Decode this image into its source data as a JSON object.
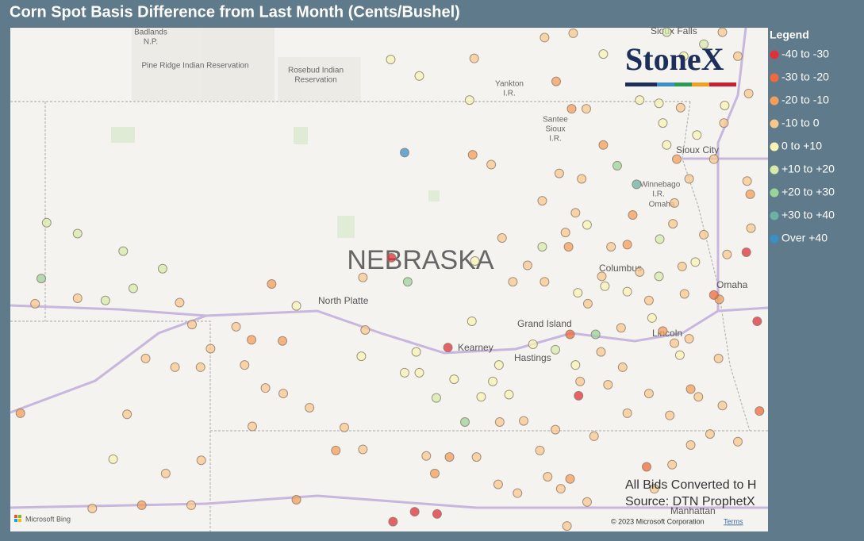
{
  "chart_data": {
    "type": "map",
    "title": "Corn Spot Basis Difference from Last Month (Cents/Bushel)",
    "legend_title": "Legend",
    "series": [
      {
        "name": "-40 to -30",
        "color": "#e0303a"
      },
      {
        "name": "-30 to -20",
        "color": "#f0693a"
      },
      {
        "name": "-20 to -10",
        "color": "#f59e5a"
      },
      {
        "name": "-10 to 0",
        "color": "#f9c78c"
      },
      {
        "name": "0 to +10",
        "color": "#f6f4b4"
      },
      {
        "name": "+10 to +20",
        "color": "#d6ebab"
      },
      {
        "name": "+20 to +30",
        "color": "#9bd39a"
      },
      {
        "name": "+30 to +40",
        "color": "#6bb2a6"
      },
      {
        "name": "Over +40",
        "color": "#3a8fc7"
      }
    ],
    "lon_range": [
      -104.5,
      -94.7
    ],
    "lat_range": [
      43.7,
      39.1
    ],
    "lon": [
      -99.4,
      -99.57,
      -98.84,
      -97.15,
      -94.84,
      -94.98,
      -98.98,
      -99.27,
      -99.55,
      -96.4,
      -96.65,
      -104.1,
      -99.36,
      -96.93,
      -98.62,
      -98.99,
      -104.03,
      -103.63,
      -103.04,
      -102.53,
      -102.91,
      -103.27,
      -100.8,
      -99.58,
      -99.21,
      -98.56,
      -103.17,
      -99.96,
      -98.53,
      -98.49,
      -104.18,
      -103.63,
      -102.31,
      -102.15,
      -101.58,
      -101.12,
      -99.94,
      -99.91,
      -101.38,
      -100.98,
      -101.91,
      -102.75,
      -102.37,
      -102.04,
      -101.47,
      -101.2,
      -100.97,
      -100.63,
      -100.18,
      -101.37,
      -102.99,
      -104.37,
      -102.03,
      -102.49,
      -103.44,
      -102.8,
      -102.16,
      -100.8,
      -100.29,
      -99.94,
      -99.12,
      -98.82,
      -98.47,
      -98.19,
      -97.94,
      -97.38,
      -97.04,
      -97.3,
      -98.5,
      -97.59,
      -97.22,
      -97.44,
      -97.24,
      -97.05,
      -96.83,
      -98.52,
      -98.28,
      -97.4,
      -97.11,
      -97.62,
      -97.19,
      -96.45,
      -96.52,
      -96.73,
      -96.85,
      -96.36,
      -96.11,
      -95.81,
      -95.53,
      -95.23,
      -94.92,
      -94.97,
      -94.93,
      -95.33,
      -95.4,
      -94.81,
      -96.27,
      -97.26,
      -96.06,
      -96.6,
      -95.72,
      -95.34,
      -95.91,
      -96.58,
      -96.86,
      -97.45,
      -97.19,
      -97.74,
      -98.18,
      -98.26,
      -98.05,
      -98.41,
      -99.4,
      -99.21,
      -98.76,
      -99.25,
      -97.13,
      -96.77,
      -96.52,
      -95.97,
      -95.6,
      -95.29,
      -95.09,
      -95.7,
      -96.95,
      -97.45,
      -97.65,
      -95.94,
      -97.55,
      -96.17,
      -97.26,
      -99.01,
      -97.81,
      -98.14,
      -97.62,
      -97.32,
      -97.04,
      -97.59,
      -98.0,
      -97.16,
      -96.81,
      -97.03,
      -96.52,
      -96.24,
      -95.78,
      -95.64,
      -95.93,
      -96.1,
      -95.91,
      -95.72,
      -95.88,
      -95.4,
      -95.62,
      -96.06,
      -96.11,
      -96.36,
      -95.83,
      -95.26,
      -95.27,
      -94.95,
      -95.09,
      -95.79,
      -95.53,
      -96.01,
      -95.29,
      -96.83,
      -96.01,
      -96.2,
      -95.84,
      -95.7,
      -96.24,
      -97.86,
      -98.17,
      -97.28,
      -95.45
    ],
    "lat": [
      42.56,
      41.6,
      40.78,
      40.34,
      41.02,
      41.65,
      39.26,
      39.28,
      39.19,
      42.27,
      42.44,
      41.41,
      41.38,
      40.9,
      40.1,
      40.32,
      41.92,
      41.82,
      41.66,
      41.5,
      41.32,
      41.21,
      41.16,
      43.41,
      43.26,
      43.04,
      39.76,
      40.7,
      41.02,
      41.57,
      41.18,
      41.23,
      41.19,
      40.99,
      40.97,
      41.36,
      41.42,
      40.94,
      40.85,
      40.84,
      40.77,
      40.68,
      40.6,
      40.6,
      40.62,
      40.41,
      40.36,
      40.23,
      40.05,
      40.06,
      40.17,
      40.18,
      39.75,
      39.63,
      39.31,
      39.34,
      39.34,
      39.39,
      39.84,
      39.85,
      39.79,
      39.78,
      39.78,
      39.53,
      39.45,
      39.49,
      39.37,
      39.15,
      43.42,
      43.61,
      43.65,
      43.21,
      42.96,
      42.96,
      42.63,
      42.54,
      42.45,
      42.37,
      42.32,
      42.12,
      42.01,
      41.99,
      41.72,
      41.7,
      41.43,
      41.47,
      41.43,
      41.52,
      41.81,
      41.63,
      41.87,
      42.3,
      42.18,
      41.22,
      41.26,
      40.2,
      39.69,
      40.9,
      40.93,
      40.96,
      40.86,
      40.68,
      40.82,
      40.6,
      40.74,
      40.76,
      40.62,
      40.81,
      40.62,
      40.47,
      40.35,
      40.33,
      40.55,
      40.55,
      40.49,
      40.74,
      40.47,
      40.44,
      40.18,
      40.16,
      40.33,
      40.25,
      39.92,
      39.89,
      39.97,
      40.03,
      39.84,
      39.71,
      39.6,
      39.49,
      39.58,
      39.63,
      41.53,
      41.78,
      41.7,
      41.83,
      41.9,
      41.38,
      41.38,
      41.28,
      41.34,
      41.18,
      41.29,
      41.21,
      41.27,
      41.56,
      41.91,
      41.77,
      42.1,
      42.32,
      42.5,
      42.5,
      42.72,
      42.83,
      43.01,
      43.04,
      42.97,
      42.99,
      42.83,
      43.1,
      43.44,
      43.44,
      43.55,
      43.66,
      43.66,
      43.46,
      42.63,
      41.05,
      40.71,
      40.4,
      40.36,
      40.11,
      40.1,
      41.7,
      39.99
    ],
    "bucket": [
      8,
      0,
      0,
      0,
      0,
      0,
      0,
      0,
      0,
      7,
      6,
      6,
      6,
      6,
      6,
      5,
      5,
      5,
      5,
      5,
      5,
      5,
      4,
      4,
      4,
      4,
      4,
      4,
      4,
      4,
      3,
      3,
      3,
      3,
      3,
      2,
      3,
      3,
      2,
      2,
      3,
      3,
      3,
      3,
      3,
      3,
      3,
      3,
      3,
      3,
      3,
      2,
      3,
      3,
      3,
      2,
      3,
      2,
      2,
      3,
      3,
      2,
      3,
      3,
      3,
      3,
      3,
      3,
      3,
      3,
      3,
      2,
      2,
      3,
      2,
      2,
      3,
      3,
      3,
      3,
      3,
      2,
      2,
      3,
      3,
      3,
      5,
      3,
      3,
      3,
      3,
      3,
      2,
      2,
      1,
      1,
      1,
      1,
      2,
      3,
      3,
      3,
      3,
      3,
      3,
      5,
      4,
      4,
      4,
      4,
      4,
      4,
      4,
      4,
      4,
      4,
      3,
      3,
      3,
      3,
      3,
      3,
      3,
      3,
      3,
      3,
      3,
      3,
      3,
      3,
      2,
      2,
      3,
      3,
      5,
      3,
      4,
      3,
      3,
      4,
      4,
      3,
      4,
      3,
      3,
      4,
      3,
      5,
      3,
      3,
      2,
      3,
      4,
      4,
      4,
      4,
      3,
      4,
      3,
      3,
      3,
      4,
      5,
      5,
      3,
      4,
      4,
      4,
      4,
      2,
      3,
      3,
      3,
      2,
      3
    ]
  },
  "map_labels": [
    "Badlands",
    "N.P.",
    "Pine Ridge Indian Reservation",
    "Rosebud Indian",
    "Reservation",
    "Yankton",
    "I.R.",
    "Santee",
    "Sioux",
    "I.R.",
    "Sioux Falls",
    "Sioux City",
    "Winnebago",
    "I.R.",
    "Omaha",
    "NEBRASKA",
    "North Platte",
    "Columbus",
    "Grand Island",
    "Kearney",
    "Hastings",
    "Lincoln",
    "Omaha",
    "Manhattan"
  ],
  "logo": "StoneX",
  "notes": [
    "All Bids Converted to H",
    "Source: DTN ProphetX"
  ],
  "attribution": {
    "provider": "Microsoft Bing",
    "copyright": "© 2023 Microsoft Corporation",
    "terms": "Terms"
  }
}
